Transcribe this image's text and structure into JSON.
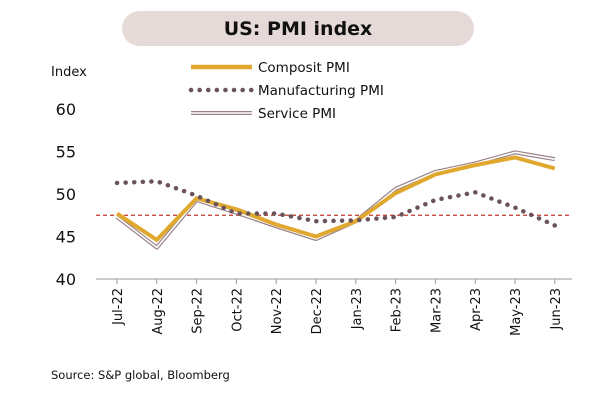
{
  "chart_data": {
    "type": "line",
    "title": "US: PMI index",
    "ylabel": "Index",
    "xlabel": "",
    "ylim": [
      40,
      60
    ],
    "yticks": [
      40,
      45,
      50,
      55,
      60
    ],
    "categories": [
      "Jul-22",
      "Aug-22",
      "Sep-22",
      "Oct-22",
      "Nov-22",
      "Dec-22",
      "Jan-23",
      "Feb-23",
      "Mar-23",
      "Apr-23",
      "May-23",
      "Jun-23"
    ],
    "reference_line": 47.5,
    "reference_line_color": "#c0392b",
    "grid": false,
    "legend_position": "top",
    "series": [
      {
        "name": "Composit PMI",
        "style": "solid",
        "color": "#e0a82e",
        "values": [
          47.7,
          44.6,
          49.5,
          48.2,
          46.4,
          45.0,
          46.8,
          50.1,
          52.3,
          53.4,
          54.3,
          53.0
        ]
      },
      {
        "name": "Manufacturing PMI",
        "style": "dotted",
        "color": "#6b5358",
        "values": [
          51.3,
          51.5,
          49.8,
          47.7,
          47.7,
          46.8,
          46.9,
          47.3,
          49.3,
          50.2,
          48.4,
          46.3
        ]
      },
      {
        "name": "Service PMI",
        "style": "double",
        "color": "#9a8287",
        "values": [
          47.3,
          43.7,
          49.3,
          47.8,
          46.2,
          44.7,
          46.8,
          50.6,
          52.6,
          53.6,
          54.9,
          54.1
        ]
      }
    ]
  },
  "footer": {
    "source": "Source: S&P global, Bloomberg"
  }
}
